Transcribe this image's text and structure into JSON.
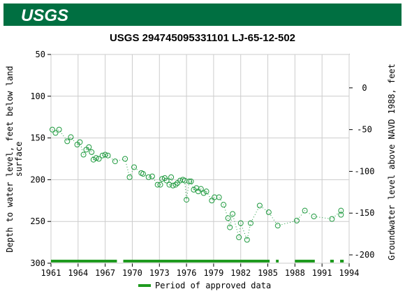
{
  "header": {
    "logo": "USGS"
  },
  "chart_data": {
    "type": "scatter",
    "title": "USGS 294745095331101 LJ-65-12-502",
    "y_label": "Depth to water level, feet below land surface",
    "y2_label": "Groundwater level above NAVD 1988, feet",
    "xlim": [
      1961,
      1994
    ],
    "xticks": [
      1961,
      1964,
      1967,
      1970,
      1973,
      1976,
      1979,
      1982,
      1985,
      1988,
      1991,
      1994
    ],
    "ylim": [
      50,
      300
    ],
    "yticks": [
      50,
      100,
      150,
      200,
      250,
      300
    ],
    "y_inverted": true,
    "y2lim": [
      40,
      -210
    ],
    "y2ticks": [
      0,
      -50,
      -100,
      -150,
      -200
    ],
    "grid": true,
    "series": [
      {
        "name": "Depth to water level",
        "color": "#1f9a3f",
        "x": [
          1961.15,
          1961.5,
          1961.9,
          1962.8,
          1963.2,
          1963.9,
          1964.2,
          1964.6,
          1964.9,
          1965.2,
          1965.5,
          1965.7,
          1966.0,
          1966.3,
          1966.7,
          1967.0,
          1967.3,
          1968.1,
          1969.2,
          1969.7,
          1970.2,
          1971.0,
          1971.2,
          1971.8,
          1972.2,
          1972.8,
          1973.1,
          1973.3,
          1973.6,
          1973.8,
          1974.1,
          1974.3,
          1974.5,
          1974.8,
          1975.0,
          1975.3,
          1975.6,
          1975.8,
          1976.0,
          1976.3,
          1976.5,
          1976.8,
          1977.1,
          1977.3,
          1977.6,
          1977.9,
          1978.2,
          1978.8,
          1979.1,
          1979.6,
          1980.1,
          1980.6,
          1980.8,
          1981.1,
          1981.8,
          1982.0,
          1982.7,
          1983.1,
          1984.1,
          1985.1,
          1986.1,
          1988.2,
          1989.1,
          1990.1,
          1992.1,
          1993.1,
          1993.1
        ],
        "values": [
          140,
          144,
          140,
          154,
          149,
          158,
          155,
          170,
          164,
          161,
          167,
          176,
          174,
          175,
          171,
          170,
          171,
          178,
          175,
          197,
          185,
          192,
          193,
          197,
          196,
          206,
          206,
          199,
          198,
          201,
          206,
          197,
          207,
          206,
          204,
          201,
          200,
          201,
          224,
          202,
          202,
          212,
          210,
          214,
          211,
          216,
          214,
          225,
          221,
          221,
          230,
          246,
          257,
          241,
          269,
          252,
          272,
          252,
          231,
          239,
          255,
          249,
          237,
          244,
          247,
          237,
          242
        ]
      }
    ],
    "approved_periods": {
      "name": "Period of approved data",
      "color": "#1f9a1f",
      "ranges": [
        [
          1961.0,
          1968.3
        ],
        [
          1969.0,
          1985.2
        ],
        [
          1985.9,
          1986.2
        ],
        [
          1988.0,
          1990.2
        ],
        [
          1991.9,
          1992.3
        ],
        [
          1993.0,
          1993.4
        ]
      ]
    }
  }
}
